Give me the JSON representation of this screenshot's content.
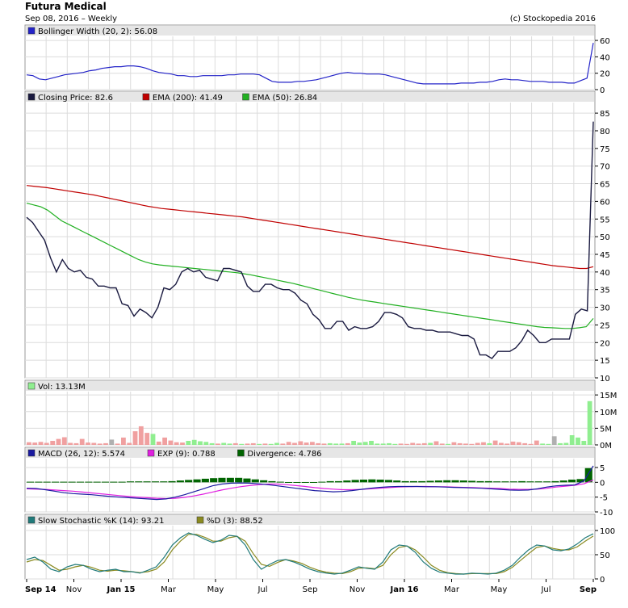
{
  "header": {
    "title": "Futura Medical",
    "subtitle": "Sep 08, 2016 – Weekly",
    "copyright": "(c) Stockopedia 2016"
  },
  "colors": {
    "price": "#1a1a40",
    "ema200": "#c00000",
    "ema50": "#22b022",
    "bollinger": "#2323c8",
    "macd": "#1a1aa0",
    "exp": "#e020e0",
    "divergence": "#006400",
    "stochK": "#207a7a",
    "stochD": "#8a8a20",
    "volUp": "#90ee90",
    "volDown": "#f0a0a0",
    "volNeutral": "#b0b0b0"
  },
  "x_axis": {
    "labels": [
      "Sep 14",
      "Nov",
      "Jan 15",
      "Mar",
      "May",
      "Jul",
      "Sep",
      "Nov",
      "Jan 16",
      "Mar",
      "May",
      "Jul",
      "Sep"
    ],
    "bold": [
      true,
      false,
      true,
      false,
      false,
      false,
      false,
      false,
      true,
      false,
      false,
      false,
      true
    ]
  },
  "chart_data": [
    {
      "type": "line",
      "panel": "bollinger",
      "legend": "Bollinger Width (20, 2): 56.08",
      "ylim": [
        0,
        65
      ],
      "yticks": [
        "0",
        "20",
        "40",
        "60"
      ],
      "series": [
        {
          "name": "Bollinger Width (20, 2)",
          "values": [
            18,
            17,
            13,
            12,
            14,
            16,
            18,
            19,
            20,
            21,
            23,
            24,
            26,
            27,
            28,
            28,
            29,
            29,
            28,
            26,
            23,
            21,
            20,
            19,
            17,
            17,
            16,
            16,
            17,
            17,
            17,
            17,
            18,
            18,
            19,
            19,
            19,
            18,
            14,
            10,
            9,
            9,
            9,
            10,
            10,
            11,
            12,
            14,
            16,
            18,
            20,
            21,
            20,
            20,
            19,
            19,
            19,
            18,
            16,
            14,
            12,
            10,
            8,
            7,
            7,
            7,
            7,
            7,
            7,
            8,
            8,
            8,
            9,
            9,
            10,
            12,
            13,
            12,
            12,
            11,
            10,
            10,
            10,
            9,
            9,
            9,
            8,
            8,
            11,
            14,
            57
          ]
        }
      ]
    },
    {
      "type": "line",
      "panel": "price",
      "legend": [
        "Closing Price: 82.6",
        "EMA (200): 41.49",
        "EMA (50): 26.84"
      ],
      "ylim": [
        10,
        88
      ],
      "yticks": [
        "10",
        "15",
        "20",
        "25",
        "30",
        "35",
        "40",
        "45",
        "50",
        "55",
        "60",
        "65",
        "70",
        "75",
        "80",
        "85"
      ],
      "series": [
        {
          "name": "Closing Price",
          "values": [
            55.5,
            54,
            51.5,
            49,
            44,
            40,
            43.5,
            41,
            40,
            40.5,
            38.5,
            38,
            36,
            36,
            35.5,
            35.5,
            31,
            30.5,
            27.5,
            29.5,
            28.5,
            27,
            30,
            35.5,
            35,
            36.5,
            40,
            41,
            40,
            40.5,
            38.5,
            38,
            37.5,
            41,
            41,
            40.5,
            40,
            36,
            34.5,
            34.5,
            36.5,
            36.5,
            35.5,
            35,
            35,
            34,
            32,
            31,
            28,
            26.5,
            24,
            24,
            26,
            26,
            23.5,
            24.5,
            24,
            24,
            24.5,
            26,
            28.5,
            28.5,
            28,
            27,
            24.5,
            24,
            24,
            23.5,
            23.5,
            23,
            23,
            23,
            22.5,
            22,
            22,
            21,
            16.5,
            16.5,
            15.5,
            17.5,
            17.5,
            17.5,
            18.5,
            20.5,
            23.5,
            22,
            20,
            20,
            21,
            21,
            21,
            21,
            28,
            29.5,
            29,
            82.6
          ]
        },
        {
          "name": "EMA (200)",
          "values": [
            64.5,
            64.3,
            64.1,
            63.9,
            63.6,
            63.3,
            63.0,
            62.7,
            62.4,
            62.1,
            61.8,
            61.4,
            61.0,
            60.6,
            60.2,
            59.8,
            59.4,
            59.0,
            58.6,
            58.3,
            58.0,
            57.8,
            57.6,
            57.4,
            57.2,
            57.0,
            56.8,
            56.6,
            56.4,
            56.2,
            56.0,
            55.8,
            55.6,
            55.3,
            55.0,
            54.7,
            54.4,
            54.1,
            53.8,
            53.5,
            53.2,
            52.9,
            52.6,
            52.3,
            52.0,
            51.7,
            51.4,
            51.1,
            50.8,
            50.5,
            50.2,
            49.9,
            49.6,
            49.3,
            49.0,
            48.7,
            48.4,
            48.1,
            47.8,
            47.5,
            47.2,
            46.9,
            46.6,
            46.3,
            46.0,
            45.7,
            45.4,
            45.1,
            44.8,
            44.5,
            44.2,
            43.9,
            43.6,
            43.3,
            43.0,
            42.7,
            42.4,
            42.1,
            41.8,
            41.6,
            41.4,
            41.2,
            41.0,
            41.0,
            41.49
          ]
        },
        {
          "name": "EMA (50)",
          "values": [
            59.5,
            59,
            58.5,
            57.5,
            56,
            54.5,
            53.5,
            52.5,
            51.5,
            50.5,
            49.5,
            48.5,
            47.5,
            46.5,
            45.5,
            44.5,
            43.5,
            42.8,
            42.3,
            42,
            41.8,
            41.6,
            41.4,
            41.2,
            41,
            40.8,
            40.6,
            40.4,
            40.2,
            40,
            39.8,
            39.5,
            39.2,
            38.8,
            38.4,
            38,
            37.6,
            37.2,
            36.8,
            36.3,
            35.8,
            35.3,
            34.8,
            34.3,
            33.8,
            33.3,
            32.8,
            32.4,
            32,
            31.7,
            31.4,
            31.1,
            30.8,
            30.5,
            30.2,
            29.9,
            29.6,
            29.3,
            29,
            28.7,
            28.4,
            28.1,
            27.8,
            27.5,
            27.2,
            26.9,
            26.6,
            26.3,
            26,
            25.7,
            25.4,
            25.1,
            24.8,
            24.5,
            24.3,
            24.2,
            24.1,
            24.0,
            24.0,
            24.2,
            24.5,
            26.84
          ]
        }
      ]
    },
    {
      "type": "bar",
      "panel": "volume",
      "legend": "Vol: 13.13M",
      "ylim": [
        0,
        16
      ],
      "yticks": [
        "0M",
        "5M",
        "10M",
        "15M"
      ],
      "series": [
        {
          "name": "Vol",
          "values": [
            0.8,
            0.7,
            0.9,
            0.6,
            1.2,
            1.8,
            2.3,
            0.6,
            0.5,
            1.8,
            0.7,
            0.6,
            0.4,
            0.5,
            1.6,
            0.4,
            2.2,
            0.6,
            4.1,
            5.6,
            3.6,
            3.3,
            1.0,
            2.2,
            1.3,
            0.8,
            0.7,
            1.2,
            1.5,
            1.1,
            0.9,
            0.5,
            0.4,
            0.6,
            0.4,
            0.5,
            0.3,
            0.4,
            0.5,
            0.3,
            0.4,
            0.3,
            0.6,
            0.4,
            0.9,
            0.6,
            1.1,
            0.7,
            0.9,
            0.5,
            0.4,
            0.5,
            0.4,
            0.4,
            0.5,
            1.2,
            0.7,
            0.9,
            1.2,
            0.4,
            0.4,
            0.5,
            0.3,
            0.4,
            0.3,
            0.6,
            0.4,
            0.5,
            0.6,
            1.1,
            0.4,
            0.3,
            0.8,
            0.5,
            0.4,
            0.3,
            0.6,
            0.8,
            0.5,
            1.3,
            0.6,
            0.4,
            1.0,
            0.8,
            0.5,
            0.3,
            1.3,
            0.4,
            0.3,
            2.6,
            0.5,
            0.6,
            2.9,
            2.2,
            1.2,
            13.13
          ]
        },
        {
          "name": "direction",
          "values": [
            0,
            0,
            0,
            0,
            0,
            0,
            0,
            0,
            0,
            0,
            0,
            0,
            0,
            0,
            2,
            0,
            0,
            0,
            0,
            0,
            0,
            1,
            0,
            0,
            0,
            0,
            0,
            1,
            1,
            1,
            1,
            1,
            0,
            1,
            1,
            0,
            1,
            0,
            0,
            1,
            0,
            1,
            1,
            0,
            0,
            0,
            0,
            0,
            0,
            0,
            0,
            1,
            1,
            1,
            0,
            1,
            1,
            1,
            1,
            1,
            1,
            1,
            1,
            0,
            0,
            0,
            0,
            0,
            1,
            0,
            0,
            1,
            0,
            0,
            0,
            0,
            0,
            0,
            1,
            0,
            0,
            0,
            0,
            0,
            0,
            0,
            0,
            1,
            1,
            2,
            1,
            1,
            1,
            1,
            1,
            1
          ]
        }
      ]
    },
    {
      "type": "line",
      "panel": "macd",
      "legend": [
        "MACD (26, 12): 5.574",
        "EXP (9): 0.788",
        "Divergence: 4.786"
      ],
      "ylim": [
        -10,
        8
      ],
      "yticks": [
        "-10",
        "-5",
        "0",
        "5"
      ],
      "series": [
        {
          "name": "MACD (26, 12)",
          "values": [
            -2.0,
            -2.1,
            -2.5,
            -3.0,
            -3.5,
            -3.8,
            -4.0,
            -4.2,
            -4.5,
            -4.8,
            -5.0,
            -5.2,
            -5.4,
            -5.6,
            -5.8,
            -5.6,
            -5.0,
            -4.2,
            -3.2,
            -2.2,
            -1.2,
            -0.6,
            -0.3,
            -0.2,
            -0.3,
            -0.5,
            -0.8,
            -1.2,
            -1.6,
            -2.0,
            -2.4,
            -2.8,
            -3.0,
            -3.2,
            -3.1,
            -2.8,
            -2.4,
            -2.0,
            -1.7,
            -1.5,
            -1.4,
            -1.4,
            -1.4,
            -1.5,
            -1.5,
            -1.6,
            -1.7,
            -1.8,
            -1.9,
            -2.0,
            -2.2,
            -2.4,
            -2.6,
            -2.7,
            -2.6,
            -2.2,
            -1.6,
            -1.2,
            -1.0,
            -0.9,
            0.5,
            5.574
          ]
        },
        {
          "name": "EXP (9)",
          "values": [
            -2.2,
            -2.3,
            -2.4,
            -2.6,
            -2.8,
            -3.0,
            -3.3,
            -3.6,
            -3.9,
            -4.2,
            -4.5,
            -4.8,
            -5.0,
            -5.2,
            -5.4,
            -5.5,
            -5.4,
            -5.1,
            -4.6,
            -4.0,
            -3.3,
            -2.6,
            -2.0,
            -1.5,
            -1.1,
            -0.8,
            -0.6,
            -0.6,
            -0.8,
            -1.1,
            -1.4,
            -1.8,
            -2.1,
            -2.3,
            -2.5,
            -2.5,
            -2.4,
            -2.2,
            -2.0,
            -1.8,
            -1.6,
            -1.5,
            -1.4,
            -1.4,
            -1.5,
            -1.5,
            -1.6,
            -1.7,
            -1.8,
            -1.9,
            -2.0,
            -2.1,
            -2.3,
            -2.4,
            -2.4,
            -2.3,
            -2.0,
            -1.6,
            -1.3,
            -1.0,
            -0.5,
            0.788
          ]
        },
        {
          "name": "Divergence",
          "values": [
            0.2,
            0.2,
            0.2,
            0.2,
            0.2,
            0.2,
            0.2,
            0.2,
            0.2,
            0.2,
            0.2,
            0.2,
            0.3,
            0.3,
            0.3,
            0.3,
            0.3,
            0.4,
            0.6,
            0.8,
            1.0,
            1.2,
            1.4,
            1.5,
            1.5,
            1.5,
            1.3,
            1.0,
            0.7,
            0.4,
            0.2,
            0.1,
            0.1,
            0.1,
            0.1,
            0.2,
            0.4,
            0.4,
            0.6,
            0.8,
            0.9,
            1.0,
            0.9,
            0.8,
            0.6,
            0.4,
            0.4,
            0.4,
            0.5,
            0.6,
            0.7,
            0.7,
            0.6,
            0.5,
            0.4,
            0.4,
            0.3,
            0.3,
            0.3,
            0.4,
            0.3,
            0.3,
            0.3,
            0.4,
            0.6,
            0.9,
            1.1,
            4.786
          ]
        }
      ]
    },
    {
      "type": "line",
      "panel": "stochastic",
      "legend": [
        "Slow Stochastic %K (14): 93.21",
        "%D (3): 88.52"
      ],
      "ylim": [
        0,
        110
      ],
      "yticks": [
        "0",
        "50",
        "100"
      ],
      "series": [
        {
          "name": "Slow Stochastic %K (14)",
          "values": [
            40,
            45,
            35,
            20,
            15,
            25,
            30,
            28,
            20,
            15,
            18,
            20,
            15,
            15,
            12,
            18,
            25,
            45,
            70,
            85,
            95,
            90,
            82,
            75,
            80,
            90,
            88,
            70,
            40,
            20,
            30,
            38,
            40,
            35,
            28,
            20,
            15,
            12,
            10,
            12,
            18,
            25,
            22,
            20,
            35,
            60,
            70,
            68,
            55,
            35,
            22,
            14,
            12,
            10,
            10,
            12,
            11,
            10,
            12,
            18,
            28,
            45,
            60,
            70,
            68,
            60,
            58,
            62,
            72,
            85,
            93.21
          ]
        },
        {
          "name": "%D (3)",
          "values": [
            35,
            40,
            38,
            28,
            18,
            20,
            25,
            28,
            24,
            18,
            16,
            18,
            17,
            15,
            13,
            15,
            20,
            35,
            60,
            78,
            92,
            92,
            86,
            78,
            78,
            85,
            88,
            78,
            52,
            30,
            26,
            34,
            40,
            37,
            32,
            24,
            18,
            14,
            12,
            11,
            15,
            22,
            23,
            21,
            28,
            50,
            65,
            68,
            60,
            45,
            28,
            18,
            13,
            11,
            10,
            11,
            11,
            11,
            11,
            15,
            24,
            38,
            52,
            65,
            68,
            63,
            60,
            60,
            66,
            78,
            88.52
          ]
        }
      ]
    }
  ]
}
